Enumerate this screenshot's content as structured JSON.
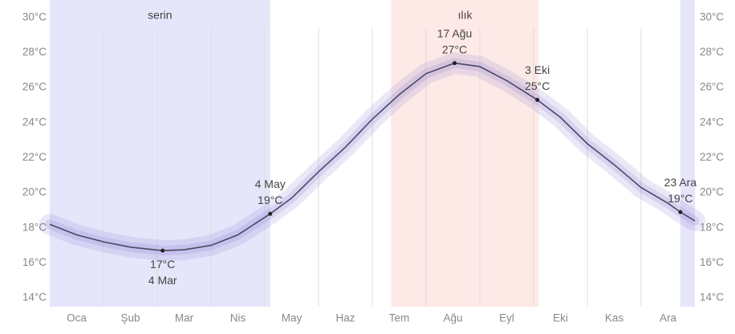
{
  "chart_data": {
    "type": "line",
    "categories": [
      "Oca",
      "Şub",
      "Mar",
      "Nis",
      "May",
      "Haz",
      "Tem",
      "Ağu",
      "Eyl",
      "Eki",
      "Kas",
      "Ara"
    ],
    "xlim": [
      0,
      12
    ],
    "ylim": [
      13.5,
      31
    ],
    "yticks": [
      {
        "value": 14,
        "label": "14°C"
      },
      {
        "value": 16,
        "label": "16°C"
      },
      {
        "value": 18,
        "label": "18°C"
      },
      {
        "value": 20,
        "label": "20°C"
      },
      {
        "value": 22,
        "label": "22°C"
      },
      {
        "value": 24,
        "label": "24°C"
      },
      {
        "value": 26,
        "label": "26°C"
      },
      {
        "value": 28,
        "label": "28°C"
      },
      {
        "value": 30,
        "label": "30°C"
      }
    ],
    "grid": false,
    "series": [
      {
        "color": "#4a4866",
        "x": [
          0,
          0.5,
          1,
          1.5,
          2.1,
          2.5,
          3,
          3.5,
          4.1,
          4.5,
          5,
          5.5,
          6,
          6.5,
          7,
          7.53,
          8,
          8.5,
          9.07,
          9.5,
          10,
          10.5,
          11,
          11.5,
          11.73,
          12
        ],
        "values": [
          18.2,
          17.6,
          17.2,
          16.9,
          16.7,
          16.75,
          17.0,
          17.6,
          18.8,
          19.7,
          21.2,
          22.6,
          24.2,
          25.6,
          26.8,
          27.4,
          27.2,
          26.4,
          25.3,
          24.3,
          22.8,
          21.6,
          20.3,
          19.4,
          18.9,
          18.4
        ]
      }
    ],
    "bands": [
      {
        "label": "serin",
        "color": "#e6e6fb",
        "x": [
          0,
          4.1
        ]
      },
      {
        "label": "ılık",
        "color": "#fde9e6",
        "x": [
          6.35,
          9.1
        ]
      },
      {
        "color": "#e6e6fb",
        "x": [
          11.73,
          12
        ]
      }
    ],
    "annotations": [
      {
        "date": "4 Mar",
        "x": 2.1,
        "value": 16.7,
        "value_label": "17°C",
        "position": "below"
      },
      {
        "date": "4 May",
        "x": 4.1,
        "value": 18.8,
        "value_label": "19°C",
        "position": "above"
      },
      {
        "date": "17 Ağu",
        "x": 7.53,
        "value": 27.4,
        "value_label": "27°C",
        "position": "above"
      },
      {
        "date": "3 Eki",
        "x": 9.07,
        "value": 25.3,
        "value_label": "25°C",
        "position": "above"
      },
      {
        "date": "23 Ara",
        "x": 11.73,
        "value": 18.9,
        "value_label": "19°C",
        "position": "above"
      }
    ]
  }
}
